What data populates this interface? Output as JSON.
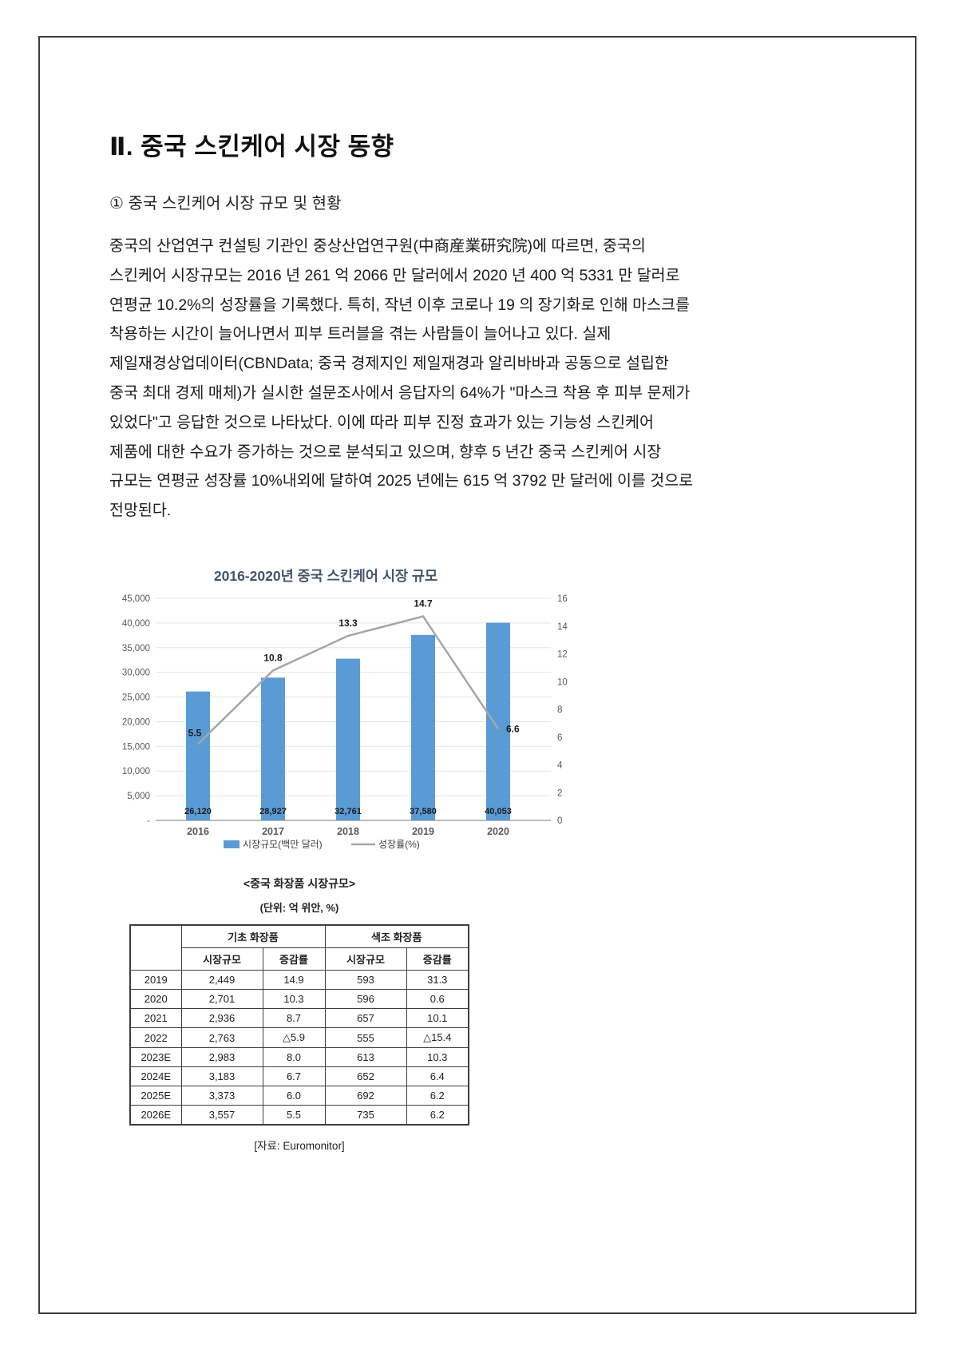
{
  "page": {
    "title": "Ⅱ. 중국 스킨케어 시장 동향",
    "subtitle": "① 중국 스킨케어 시장 규모 및 현황",
    "paragraph_lines": [
      "중국의 산업연구 컨설팅 기관인 중상산업연구원(中商産業研究院)에 따르면, 중국의",
      "스킨케어 시장규모는 2016 년 261 억 2066 만 달러에서 2020 년 400 억 5331 만 달러로",
      "연평균 10.2%의 성장률을 기록했다. 특히, 작년 이후 코로나 19 의 장기화로 인해 마스크를",
      "착용하는 시간이 늘어나면서 피부 트러블을 겪는 사람들이 늘어나고 있다. 실제",
      "제일재경상업데이터(CBNData; 중국 경제지인 제일재경과 알리바바과 공동으로 설립한",
      "중국 최대 경제 매체)가 실시한 설문조사에서 응답자의 64%가 \"마스크 착용 후 피부 문제가",
      "있었다\"고 응답한 것으로 나타났다. 이에 따라 피부 진정 효과가 있는 기능성 스킨케어",
      "제품에 대한 수요가 증가하는 것으로 분석되고 있으며, 향후 5 년간 중국 스킨케어 시장",
      "규모는 연평균 성장률 10%내외에 달하여 2025 년에는 615 억 3792 만 달러에 이를 것으로",
      "전망된다."
    ]
  },
  "chart_data": {
    "type": "bar+line",
    "title": "2016-2020년 중국 스킨케어 시장 규모",
    "title_color": "#44546A",
    "categories": [
      "2016",
      "2017",
      "2018",
      "2019",
      "2020"
    ],
    "series": [
      {
        "name": "시장규모(백만 달러)",
        "type": "bar",
        "axis": "left",
        "values": [
          26120,
          28927,
          32761,
          37580,
          40053
        ],
        "labels": [
          "26,120",
          "28,927",
          "32,761",
          "37,580",
          "40,053"
        ],
        "color": "#5B9BD5"
      },
      {
        "name": "성장률(%)",
        "type": "line",
        "axis": "right",
        "values": [
          5.5,
          10.8,
          13.3,
          14.7,
          6.6
        ],
        "labels": [
          "5.5",
          "10.8",
          "13.3",
          "14.7",
          "6.6"
        ],
        "color": "#A6A6A6"
      }
    ],
    "left_axis": {
      "min": 0,
      "max": 45000,
      "step": 5000,
      "tick_labels": [
        "-",
        "5,000",
        "10,000",
        "15,000",
        "20,000",
        "25,000",
        "30,000",
        "35,000",
        "40,000",
        "45,000"
      ]
    },
    "right_axis": {
      "min": 0,
      "max": 16,
      "step": 2,
      "tick_labels": [
        "0",
        "2",
        "4",
        "6",
        "8",
        "10",
        "12",
        "14",
        "16"
      ]
    },
    "grid": true,
    "legend_position": "bottom"
  },
  "table": {
    "caption": "<중국 화장품 시장규모>",
    "unit_note": "(단위: 억 위안, %)",
    "col_groups": [
      "기초 화장품",
      "색조 화장품"
    ],
    "sub_headers": [
      "시장규모",
      "증감률",
      "시장규모",
      "증감률"
    ],
    "rows": [
      {
        "year": "2019",
        "cells": [
          "2,449",
          "14.9",
          "593",
          "31.3"
        ]
      },
      {
        "year": "2020",
        "cells": [
          "2,701",
          "10.3",
          "596",
          "0.6"
        ]
      },
      {
        "year": "2021",
        "cells": [
          "2,936",
          "8.7",
          "657",
          "10.1"
        ]
      },
      {
        "year": "2022",
        "cells": [
          "2,763",
          "△5.9",
          "555",
          "△15.4"
        ]
      },
      {
        "year": "2023E",
        "cells": [
          "2,983",
          "8.0",
          "613",
          "10.3"
        ]
      },
      {
        "year": "2024E",
        "cells": [
          "3,183",
          "6.7",
          "652",
          "6.4"
        ]
      },
      {
        "year": "2025E",
        "cells": [
          "3,373",
          "6.0",
          "692",
          "6.2"
        ]
      },
      {
        "year": "2026E",
        "cells": [
          "3,557",
          "5.5",
          "735",
          "6.2"
        ]
      }
    ],
    "source": "[자료: Euromonitor]"
  }
}
